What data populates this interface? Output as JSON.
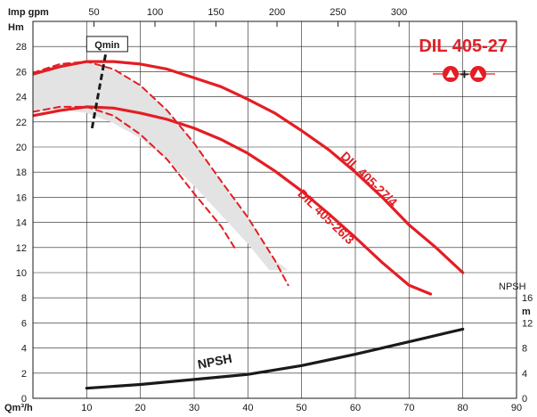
{
  "chart_data": {
    "type": "line",
    "title": "DIL 405-27",
    "x_axis": {
      "label": "Qm³/h",
      "min": 0,
      "max": 90,
      "ticks": [
        "10",
        "20",
        "30",
        "40",
        "50",
        "60",
        "70",
        "80",
        "90"
      ]
    },
    "x2_axis": {
      "label": "Imp gpm",
      "ticks": [
        "50",
        "100",
        "150",
        "200",
        "250",
        "300"
      ],
      "tick_values_m3h": [
        11.36,
        22.71,
        34.07,
        45.42,
        56.78,
        68.14
      ]
    },
    "y_axis": {
      "label": "Hm",
      "min": 0,
      "max": 30,
      "ticks": [
        "0",
        "2",
        "4",
        "6",
        "8",
        "10",
        "12",
        "14",
        "16",
        "18",
        "20",
        "22",
        "24",
        "26",
        "28"
      ]
    },
    "y2_axis": {
      "label": "NPSH",
      "unit": "m",
      "ticks": [
        "0",
        "4",
        "8",
        "12",
        "16"
      ],
      "tick_values_hm": [
        0,
        2,
        4,
        6,
        8
      ]
    },
    "qmin": {
      "label": "Qmin",
      "line": [
        [
          11,
          21.5
        ],
        [
          14,
          28.5
        ]
      ]
    },
    "series": [
      {
        "name": "DIL 405-27/4",
        "style": "solid",
        "color": "#e31e24",
        "x": [
          0,
          5,
          10,
          15,
          20,
          25,
          30,
          35,
          40,
          45,
          50,
          55,
          60,
          65,
          70,
          75,
          80
        ],
        "y": [
          25.8,
          26.4,
          26.8,
          26.8,
          26.6,
          26.2,
          25.5,
          24.8,
          23.8,
          22.7,
          21.3,
          19.8,
          18.0,
          16.0,
          13.8,
          12.0,
          10.0
        ]
      },
      {
        "name": "DIL 405-26/3",
        "style": "solid",
        "color": "#e31e24",
        "x": [
          0,
          5,
          10,
          15,
          20,
          25,
          30,
          35,
          40,
          45,
          50,
          55,
          60,
          65,
          70,
          74
        ],
        "y": [
          22.5,
          22.9,
          23.2,
          23.1,
          22.7,
          22.2,
          21.5,
          20.6,
          19.5,
          18.1,
          16.5,
          14.7,
          12.8,
          10.8,
          9.0,
          8.3
        ]
      },
      {
        "name": "",
        "style": "dashed",
        "color": "#e31e24",
        "x": [
          0,
          5,
          10,
          15,
          20,
          25,
          30,
          35,
          40,
          45,
          47.5
        ],
        "y": [
          25.9,
          26.6,
          26.8,
          26.2,
          24.9,
          22.9,
          20.3,
          17.3,
          14.4,
          11.0,
          9.0
        ]
      },
      {
        "name": "",
        "style": "dashed",
        "color": "#e31e24",
        "x": [
          0,
          5,
          10,
          15,
          20,
          25,
          30,
          35,
          37.5
        ],
        "y": [
          22.8,
          23.2,
          23.2,
          22.5,
          21.0,
          19.0,
          16.3,
          13.7,
          12.0
        ]
      },
      {
        "name": "NPSH",
        "style": "solid",
        "color": "#1a1a1a",
        "x": [
          10,
          20,
          30,
          40,
          50,
          60,
          70,
          80
        ],
        "y": [
          0.8,
          1.1,
          1.5,
          1.9,
          2.6,
          3.5,
          4.5,
          5.5
        ]
      }
    ],
    "shaded_region": {
      "upper_x": [
        0,
        5,
        10,
        15,
        20,
        25,
        30,
        35,
        40,
        45,
        47.5
      ],
      "upper_y": [
        25.9,
        26.6,
        26.8,
        26.2,
        24.9,
        22.9,
        20.3,
        17.3,
        14.4,
        11.0,
        10.2
      ],
      "lower_x": [
        44,
        40,
        35,
        30,
        25,
        20,
        15,
        10,
        5,
        0
      ],
      "lower_y": [
        10.2,
        12.3,
        14.6,
        16.9,
        19.0,
        20.7,
        21.9,
        22.7,
        23.0,
        22.8
      ]
    },
    "annotations": [
      {
        "text": "DIL 405-27/4",
        "x": 62,
        "y": 17.2,
        "rotate": 44,
        "color": "#e31e24"
      },
      {
        "text": "DIL 405-26/3",
        "x": 54,
        "y": 14.2,
        "rotate": 44,
        "color": "#e31e24"
      },
      {
        "text": "NPSH",
        "x": 34,
        "y": 2.6,
        "rotate": -11,
        "color": "#1a1a1a"
      }
    ],
    "logo": {
      "plus": "+",
      "symbol": "pump-symbol-icon",
      "color": "#e31e24"
    },
    "grid": true
  }
}
